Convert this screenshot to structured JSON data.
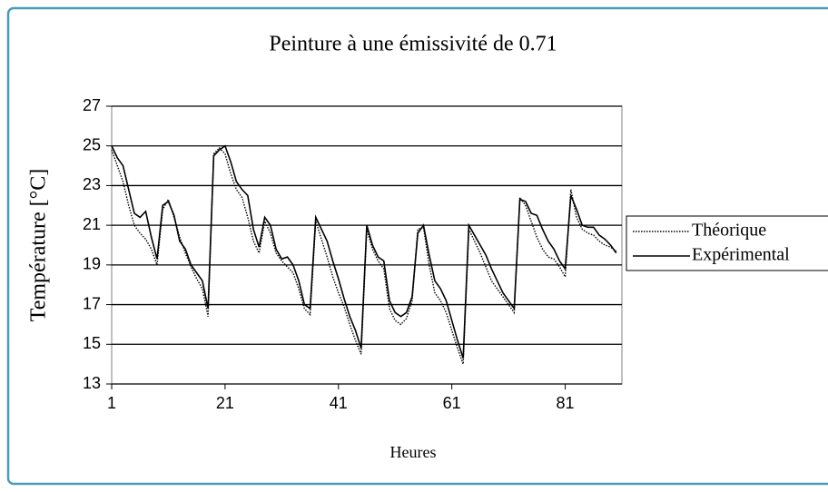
{
  "chart_data": {
    "type": "line",
    "title": "Peinture à une émissivité de 0.71",
    "y_label": "Température [°C]",
    "x_label": "Heures",
    "x": [
      1,
      2,
      3,
      4,
      5,
      6,
      7,
      8,
      9,
      10,
      11,
      12,
      13,
      14,
      15,
      16,
      17,
      18,
      19,
      20,
      21,
      22,
      23,
      24,
      25,
      26,
      27,
      28,
      29,
      30,
      31,
      32,
      33,
      34,
      35,
      36,
      37,
      38,
      39,
      40,
      41,
      42,
      43,
      44,
      45,
      46,
      47,
      48,
      49,
      50,
      51,
      52,
      53,
      54,
      55,
      56,
      57,
      58,
      59,
      60,
      61,
      62,
      63,
      64,
      65,
      66,
      67,
      68,
      69,
      70,
      71,
      72,
      73,
      74,
      75,
      76,
      77,
      78,
      79,
      80,
      81,
      82,
      83,
      84,
      85,
      86,
      87,
      88,
      89,
      90
    ],
    "series": [
      {
        "name": "Théorique",
        "color": "#000000",
        "dash": "dotted",
        "values": [
          24.8,
          24.0,
          23.2,
          22.0,
          21.0,
          20.6,
          20.3,
          19.8,
          19.0,
          21.8,
          22.3,
          21.4,
          20.4,
          19.6,
          18.9,
          18.3,
          17.8,
          16.4,
          24.6,
          24.9,
          24.6,
          23.6,
          22.8,
          22.4,
          21.4,
          20.2,
          19.6,
          21.2,
          20.6,
          19.6,
          19.2,
          18.9,
          18.6,
          17.8,
          16.8,
          16.5,
          21.2,
          20.3,
          19.4,
          18.4,
          17.6,
          16.9,
          16.0,
          15.2,
          14.5,
          20.8,
          19.8,
          19.2,
          18.8,
          16.8,
          16.2,
          16.0,
          16.3,
          17.2,
          20.8,
          20.9,
          19.0,
          17.6,
          17.2,
          16.6,
          15.7,
          14.8,
          14.0,
          20.8,
          20.2,
          19.6,
          18.9,
          18.2,
          17.8,
          17.4,
          17.0,
          16.6,
          22.4,
          22.0,
          21.2,
          20.4,
          19.8,
          19.4,
          19.3,
          18.9,
          18.4,
          22.8,
          21.4,
          20.8,
          20.6,
          20.5,
          20.2,
          20.0,
          19.9,
          19.7
        ]
      },
      {
        "name": "Expérimental",
        "color": "#000000",
        "dash": "solid",
        "values": [
          25.0,
          24.4,
          24.0,
          22.8,
          21.6,
          21.4,
          21.7,
          20.4,
          19.3,
          22.0,
          22.2,
          21.5,
          20.2,
          19.8,
          19.0,
          18.6,
          18.2,
          16.8,
          24.5,
          24.8,
          25.0,
          24.2,
          23.2,
          22.8,
          22.5,
          20.8,
          19.9,
          21.4,
          21.0,
          19.8,
          19.3,
          19.4,
          19.0,
          18.2,
          17.0,
          16.8,
          21.4,
          20.8,
          20.2,
          19.2,
          18.3,
          17.3,
          16.4,
          15.7,
          14.8,
          21.0,
          20.0,
          19.4,
          19.2,
          17.2,
          16.6,
          16.4,
          16.6,
          17.4,
          20.6,
          21.0,
          19.5,
          18.2,
          17.8,
          17.2,
          16.2,
          15.2,
          14.3,
          21.0,
          20.5,
          20.0,
          19.5,
          18.8,
          18.2,
          17.6,
          17.2,
          16.8,
          22.3,
          22.2,
          21.6,
          21.5,
          20.8,
          20.2,
          19.8,
          19.2,
          18.8,
          22.5,
          21.8,
          21.0,
          20.9,
          20.9,
          20.5,
          20.3,
          20.0,
          19.6
        ]
      }
    ],
    "xlim": [
      1,
      91
    ],
    "xticks": [
      1,
      21,
      41,
      61,
      81
    ],
    "ylim": [
      13,
      27
    ],
    "yticks": [
      13,
      15,
      17,
      19,
      21,
      23,
      25,
      27
    ],
    "grid": true,
    "legend": "right"
  }
}
